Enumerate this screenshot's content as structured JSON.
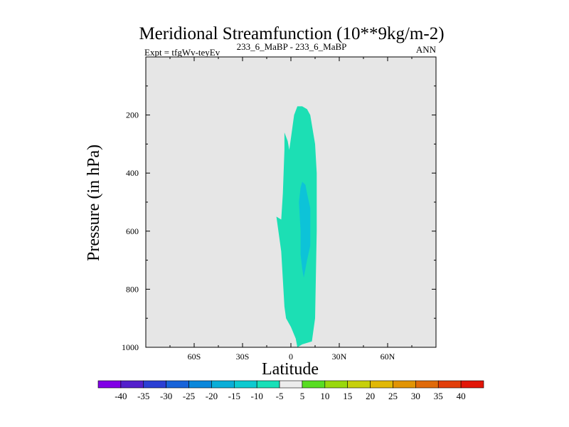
{
  "chart_data": {
    "type": "contour",
    "title": "Meridional Streamfunction (10**9kg/m-2)",
    "subtitle_left": "Expt = tfgWv-teyEv",
    "subtitle_center": "233_6_MaBP - 233_6_MaBP",
    "subtitle_right": "ANN",
    "xlabel": "Latitude",
    "ylabel": "Pressure (in hPa)",
    "xlim": [
      -90,
      90
    ],
    "ylim": [
      1000,
      0
    ],
    "x_ticks": [
      {
        "value": -60,
        "label": "60S"
      },
      {
        "value": -30,
        "label": "30S"
      },
      {
        "value": 0,
        "label": "0"
      },
      {
        "value": 30,
        "label": "30N"
      },
      {
        "value": 60,
        "label": "60N"
      }
    ],
    "y_ticks": [
      {
        "value": 200,
        "label": "200"
      },
      {
        "value": 400,
        "label": "400"
      },
      {
        "value": 600,
        "label": "600"
      },
      {
        "value": 800,
        "label": "800"
      },
      {
        "value": 1000,
        "label": "1000"
      }
    ],
    "background_color": "#e6e6e6",
    "contours": [
      {
        "level": "-10 to -5",
        "color": "#1cdfb4",
        "points": [
          [
            4,
            1000
          ],
          [
            7,
            990
          ],
          [
            13,
            980
          ],
          [
            15,
            900
          ],
          [
            16,
            600
          ],
          [
            16,
            400
          ],
          [
            15,
            300
          ],
          [
            12,
            200
          ],
          [
            10,
            180
          ],
          [
            7,
            170
          ],
          [
            4,
            170
          ],
          [
            2,
            200
          ],
          [
            0,
            280
          ],
          [
            -1,
            320
          ],
          [
            -2,
            290
          ],
          [
            -4,
            260
          ],
          [
            -4,
            320
          ],
          [
            -5,
            470
          ],
          [
            -6,
            560
          ],
          [
            -9,
            550
          ],
          [
            -6,
            670
          ],
          [
            -4,
            860
          ],
          [
            -3,
            900
          ],
          [
            0,
            930
          ],
          [
            3,
            970
          ]
        ]
      },
      {
        "level": "-15 to -10",
        "color": "#0dc3d8",
        "points": [
          [
            8,
            760
          ],
          [
            10,
            700
          ],
          [
            12,
            650
          ],
          [
            12,
            520
          ],
          [
            10,
            470
          ],
          [
            9,
            440
          ],
          [
            7,
            430
          ],
          [
            6,
            450
          ],
          [
            5,
            500
          ],
          [
            6,
            600
          ],
          [
            6,
            680
          ],
          [
            7,
            730
          ]
        ]
      }
    ],
    "colorbar": {
      "labels": [
        "-40",
        "-35",
        "-30",
        "-25",
        "-20",
        "-15",
        "-10",
        "-5",
        "5",
        "10",
        "15",
        "20",
        "25",
        "30",
        "35",
        "40"
      ],
      "colors": [
        "#8100e6",
        "#5420cc",
        "#2b3fd4",
        "#1863d9",
        "#0a87db",
        "#0aaed8",
        "#0dcad0",
        "#18e0b8",
        "#ececec",
        "#58dd22",
        "#99d80c",
        "#c7d00b",
        "#e1b806",
        "#e19404",
        "#e06a0a",
        "#e23e0a",
        "#e21608"
      ]
    }
  }
}
